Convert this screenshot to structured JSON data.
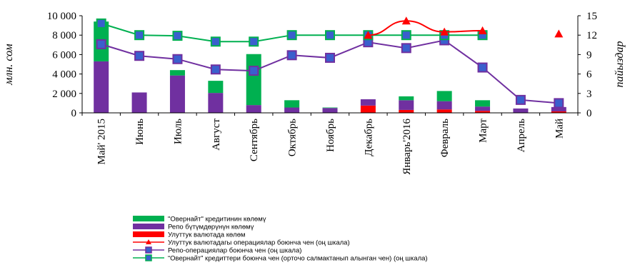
{
  "chart_data": {
    "type": "bar",
    "ylabel_left": "млн. сом",
    "ylabel_right": "пайыздар",
    "y_left_ticks": [
      "0",
      "2 000",
      "4 000",
      "6 000",
      "8 000",
      "10 000"
    ],
    "y_right_ticks": [
      "0",
      "3",
      "6",
      "9",
      "12",
      "15"
    ],
    "ylim_left": [
      0,
      10000
    ],
    "ylim_right": [
      0,
      15
    ],
    "categories": [
      "Май' 2015",
      "Июнь",
      "Июль",
      "Август",
      "Сентябрь",
      "Октябрь",
      "Ноябрь",
      "Декабрь",
      "Январь'2016",
      "Февраль",
      "Март",
      "Апрель",
      "Май"
    ],
    "stacked_bars": [
      {
        "name": "Улуттук валютада көлөм",
        "color": "#ff0000",
        "values": [
          0,
          0,
          0,
          0,
          0,
          0,
          0,
          750,
          300,
          350,
          200,
          0,
          150
        ]
      },
      {
        "name": "Репо  бүтүмдөрүнүн көлөмү",
        "color": "#7030a0",
        "values": [
          5300,
          2100,
          3850,
          2050,
          800,
          550,
          500,
          650,
          1000,
          850,
          450,
          450,
          450
        ]
      },
      {
        "name": "\"Овернайт\" кредитинин көлөмү",
        "color": "#00b050",
        "values": [
          4100,
          0,
          550,
          1250,
          5250,
          750,
          50,
          0,
          400,
          1050,
          650,
          0,
          0
        ]
      }
    ],
    "lines": [
      {
        "name": "Улуттук валютадагы операциялар боюнча чен (оң шкала)",
        "color": "#ff0000",
        "marker": "triangle",
        "values": [
          null,
          null,
          null,
          null,
          null,
          null,
          null,
          12,
          14.2,
          12.5,
          12.7,
          null,
          12.2
        ]
      },
      {
        "name": "Репо-операциялар боюнча чен (оң шкала)",
        "color": "#7030a0",
        "marker": "square",
        "values": [
          10.6,
          8.8,
          8.3,
          6.7,
          6.5,
          8.9,
          8.5,
          10.9,
          10,
          11.2,
          7,
          2,
          1.5
        ]
      },
      {
        "name": "\"Овернайт\" кредиттери боюнча чен (орточо салмактанып алынган чен) (оң шкала)",
        "color": "#00b050",
        "marker": "square",
        "values": [
          13.8,
          12,
          11.9,
          11,
          11,
          12,
          12,
          12,
          12,
          12,
          12,
          null,
          null
        ]
      }
    ]
  },
  "legend": [
    {
      "key": "overnight-volume",
      "label": "\"Овернайт\" кредитинин көлөмү",
      "color": "#00b050",
      "kind": "bar"
    },
    {
      "key": "repo-volume",
      "label": "Репо  бүтүмдөрүнүн көлөмү",
      "color": "#7030a0",
      "kind": "bar"
    },
    {
      "key": "national-currency-volume",
      "label": "Улуттук валютада көлөм",
      "color": "#ff0000",
      "kind": "bar"
    },
    {
      "key": "national-currency-rate",
      "label": "Улуттук валютадагы операциялар боюнча чен (оң шкала)",
      "color": "#ff0000",
      "kind": "line-triangle"
    },
    {
      "key": "repo-rate",
      "label": "Репо-операциялар боюнча чен (оң шкала)",
      "color": "#7030a0",
      "kind": "line-square"
    },
    {
      "key": "overnight-rate",
      "label": "“Овернайт” кредиттери боюнча чен (орточо салмактанып алынган чен) (оң шкала)",
      "color": "#00b050",
      "kind": "line-square"
    }
  ]
}
